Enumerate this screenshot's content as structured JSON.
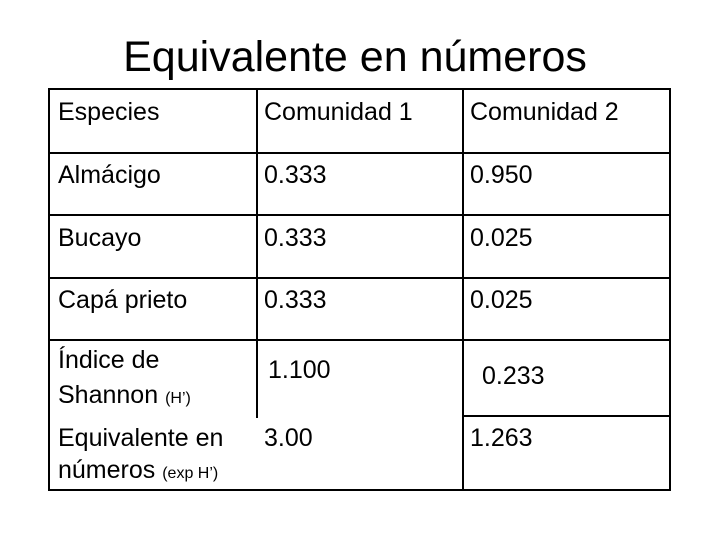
{
  "title": "Equivalente en números",
  "table": {
    "headers": [
      "Especies",
      "Comunidad 1",
      "Comunidad 2"
    ],
    "rows": [
      [
        "Almácigo",
        "0.333",
        "0.950"
      ],
      [
        "Bucayo",
        "0.333",
        "0.025"
      ],
      [
        "Capá prieto",
        "0.333",
        "0.025"
      ]
    ],
    "shannon": {
      "label_line1": "Índice de",
      "label_line2": "Shannon",
      "label_suffix": "(H’)",
      "c1": "1.100",
      "c2": "0.233"
    },
    "equivalent": {
      "label_line1": "Equivalente en",
      "label_line2": "números",
      "label_suffix": "(exp H’)",
      "c1": "3.00",
      "c2": "1.263"
    }
  }
}
